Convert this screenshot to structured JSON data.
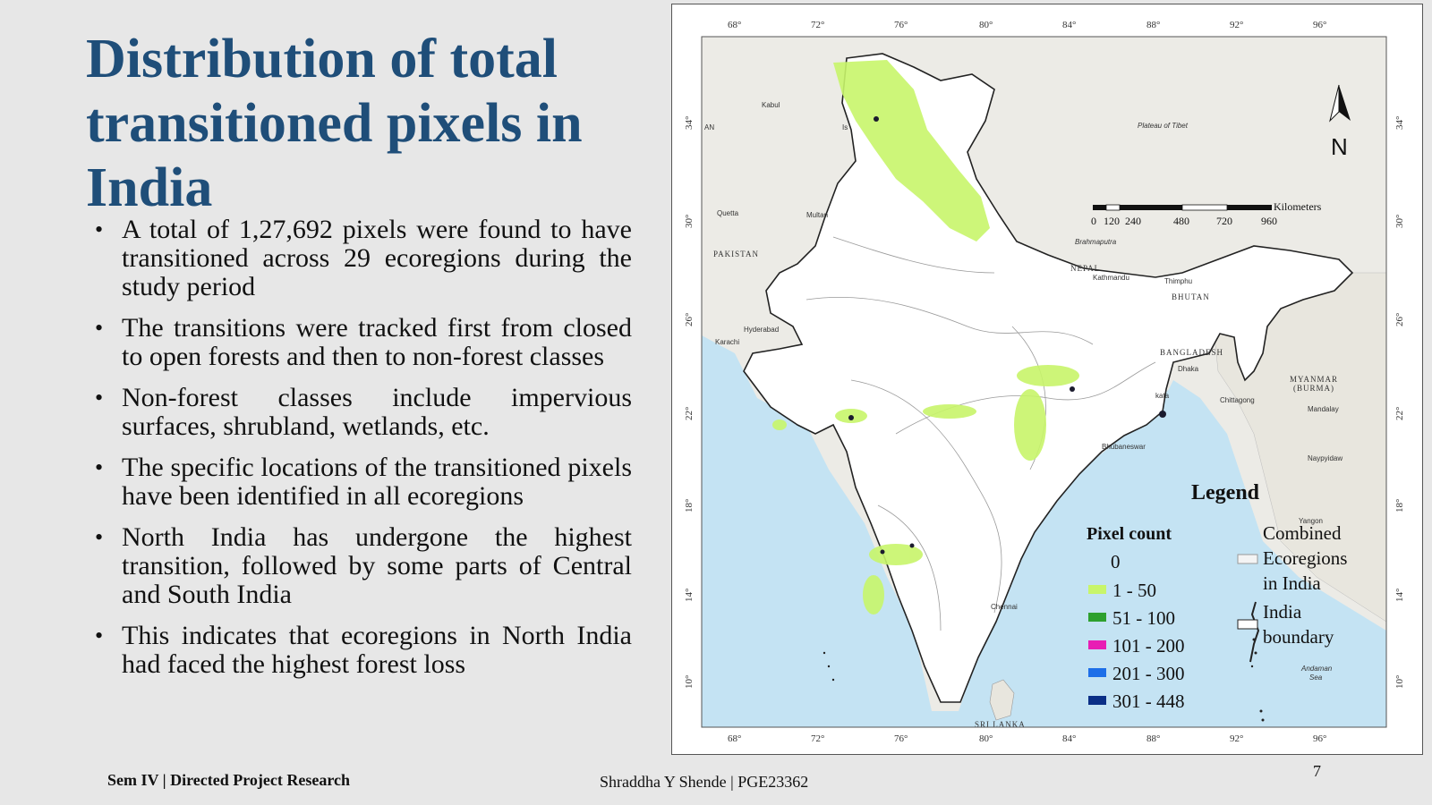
{
  "slide": {
    "title_lines": [
      "Distribution of total",
      "transitioned pixels in",
      "India"
    ],
    "bullets": [
      "A total of 1,27,692 pixels were found to have transitioned across 29 ecoregions during the study period",
      "The transitions were tracked first from closed to open forests and then to non-forest classes",
      "Non-forest classes include impervious surfaces, shrubland, wetlands, etc.",
      "The specific locations of the transitioned pixels have been identified in all ecoregions",
      "North India has undergone the highest transition, followed by some parts of Central and South India",
      "This indicates that ecoregions in North India had faced the highest forest loss"
    ],
    "bullet_symbol": "•",
    "footer_left": "Sem IV | Directed Project Research",
    "footer_center": "Shraddha Y Shende | PGE23362",
    "page_number": "7"
  },
  "map": {
    "longitude_labels": [
      "68°",
      "72°",
      "76°",
      "80°",
      "84°",
      "88°",
      "92°",
      "96°"
    ],
    "latitude_labels": [
      "34°",
      "30°",
      "26°",
      "22°",
      "18°",
      "14°",
      "10°"
    ],
    "places": {
      "plateau": "Plateau of Tibet",
      "kabul": "Kabul",
      "quetta": "Quetta",
      "multan": "Multan",
      "pakistan": "PAKISTAN",
      "hyderabad": "Hyderabad",
      "karachi": "Karachi",
      "nepal": "NEPAL",
      "kathmandu": "Kathmandu",
      "thimphu": "Thimphu",
      "bhutan": "BHUTAN",
      "bangladesh": "BANGLADESH",
      "dhaka": "Dhaka",
      "kolkata": "kata",
      "chittagong": "Chittagong",
      "myanmar": "MYANMAR",
      "burma": "(BURMA)",
      "mandalay": "Mandalay",
      "naypyidaw": "Naypyidaw",
      "yangon": "Yangon",
      "bhubaneswar": "Bhubaneswar",
      "chennai": "Chennai",
      "srilanka": "SRI LANKA",
      "andaman": "Andaman",
      "sea": "Sea",
      "afghan": "AN",
      "isb": "Is",
      "brahma": "Brahmaputra"
    },
    "north_label": "N",
    "scale_labels": [
      "0",
      "120",
      "240",
      "480",
      "720",
      "960"
    ],
    "scale_unit": "Kilometers",
    "legend": {
      "title": "Legend",
      "pixel_count_title": "Pixel count",
      "classes": [
        {
          "label": "0",
          "color": "#ffffff"
        },
        {
          "label": "1 - 50",
          "color": "#c8f56a"
        },
        {
          "label": "51 - 100",
          "color": "#2ea02e"
        },
        {
          "label": "101 - 200",
          "color": "#e81eb4"
        },
        {
          "label": "201 - 300",
          "color": "#1d6fe8"
        },
        {
          "label": "301 - 448",
          "color": "#0b2f86"
        }
      ],
      "ecoregions_lines": [
        "Combined",
        "Ecoregions",
        "in India"
      ],
      "boundary_lines": [
        "India",
        "boundary"
      ]
    },
    "colors": {
      "ocean": "#c4e3f3",
      "india_fill": "#ffffff",
      "terrain": "#ecebe6",
      "transition": "#c8f56a"
    }
  }
}
